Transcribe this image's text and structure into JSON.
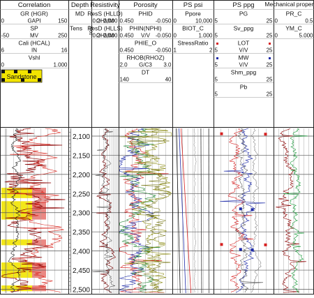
{
  "colors": {
    "gr": "#8b0000",
    "sp": "#111111",
    "cali": "#1f1f1f",
    "vshl": "#444444",
    "sand_fill": "#f2e400",
    "sand_red": "#d8261e",
    "res_shallow": "#7a1010",
    "res_deep": "#333333",
    "phid": "#1e2ba8",
    "phin": "#d62020",
    "phie": "#2a8a3a",
    "rhob": "#6b6b00",
    "dt": "#8a8a10",
    "grid": "#888888",
    "depth_line": "#111111",
    "pr": "#8b0000",
    "ym": "#1a9a3a"
  },
  "tracks": [
    {
      "title": "Correlation",
      "curves": [
        {
          "name": "GR (HGR)",
          "min": "0",
          "unit": "GAPI",
          "max": "150"
        },
        {
          "name": "SP",
          "min": "-50",
          "unit": "MV",
          "max": "250"
        },
        {
          "name": "Cali (HCAL)",
          "min": "6",
          "unit": "IN",
          "max": "16"
        },
        {
          "name": "Vshl",
          "min": "0",
          "unit": "",
          "max": "1.000"
        }
      ],
      "fill_label": "Sandstone"
    },
    {
      "title": "Depth",
      "curves": [
        {
          "name": "MD",
          "min": "",
          "unit": "",
          "max": ""
        },
        {
          "name": "Tens",
          "min": "",
          "unit": "",
          "max": "2000"
        }
      ]
    },
    {
      "title": "Resistivity",
      "curves": [
        {
          "name": "ResS (HLLD)",
          "min": "0.2",
          "unit": "OHMM",
          "max": "2,000"
        },
        {
          "name": "ResD (HLLS)",
          "min": "0.2",
          "unit": "OHMM",
          "max": "2,000"
        }
      ]
    },
    {
      "title": "Porosity",
      "curves": [
        {
          "name": "PHID",
          "min": "0.450",
          "unit": "",
          "max": "-0.050"
        },
        {
          "name": "PHIN(NPHI)",
          "min": "0.450",
          "unit": "V/V",
          "max": "-0.050"
        },
        {
          "name": "PHIE_O",
          "min": "0.450",
          "unit": "",
          "max": "-0.050"
        },
        {
          "name": "RHOB(RHOZ)",
          "min": "2.0",
          "unit": "G/C3",
          "max": "3.0"
        },
        {
          "name": "DT",
          "min": "140",
          "unit": "",
          "max": "40"
        }
      ]
    },
    {
      "title": "PS psi",
      "curves": [
        {
          "name": "Ppore",
          "min": "0",
          "unit": "",
          "max": "10,000"
        },
        {
          "name": "BIOT_C",
          "min": "0",
          "unit": "",
          "max": "1.000"
        },
        {
          "name": "StressRatio",
          "min": "1",
          "unit": "",
          "max": "2"
        }
      ]
    },
    {
      "title": "PS ppg",
      "curves": [
        {
          "name": "PG",
          "min": "5",
          "unit": "",
          "max": "25"
        },
        {
          "name": "Sv_ppg",
          "min": "5",
          "unit": "",
          "max": "25"
        },
        {
          "name": "LOT",
          "min": "5",
          "unit": "V/V",
          "max": "25"
        },
        {
          "name": "MW",
          "min": "5",
          "unit": "V/V",
          "max": "25"
        },
        {
          "name": "Shm_ppg",
          "min": "5",
          "unit": "",
          "max": "25"
        },
        {
          "name": "Pb",
          "min": "5",
          "unit": "",
          "max": "25"
        }
      ]
    },
    {
      "title": "Mechanical properties",
      "curves": [
        {
          "name": "PR_C",
          "min": "0",
          "unit": "",
          "max": "0.5"
        },
        {
          "name": "YM_C",
          "min": "0",
          "unit": "",
          "max": "5.000"
        }
      ]
    }
  ],
  "chart_data": {
    "type": "line",
    "title": "",
    "ylabel": "",
    "depth_range": [
      2080,
      2510
    ],
    "depth_ticks": [
      2100,
      2150,
      2200,
      2250,
      2300,
      2350,
      2400,
      2450,
      2500
    ],
    "depth_tick_labels": [
      "2,100",
      "2,150",
      "2,200",
      "2,250",
      "2,300",
      "2,350",
      "2,400",
      "2,450",
      "2,500"
    ],
    "sandstone_intervals": [
      [
        2235,
        2262
      ],
      [
        2270,
        2318
      ],
      [
        2370,
        2385
      ],
      [
        2430,
        2470
      ],
      [
        2490,
        2505
      ]
    ],
    "lot_points": [
      {
        "depth": 2094,
        "value": 7.5
      },
      {
        "depth": 2095,
        "value": 22.5
      },
      {
        "depth": 2383,
        "value": 7.5
      },
      {
        "depth": 2384,
        "value": 22.5
      }
    ],
    "mw_points": [
      {
        "depth": 2290,
        "value": 14
      },
      {
        "depth": 2292,
        "value": 18
      },
      {
        "depth": 2396,
        "value": 14
      },
      {
        "depth": 2397,
        "value": 18
      }
    ]
  }
}
